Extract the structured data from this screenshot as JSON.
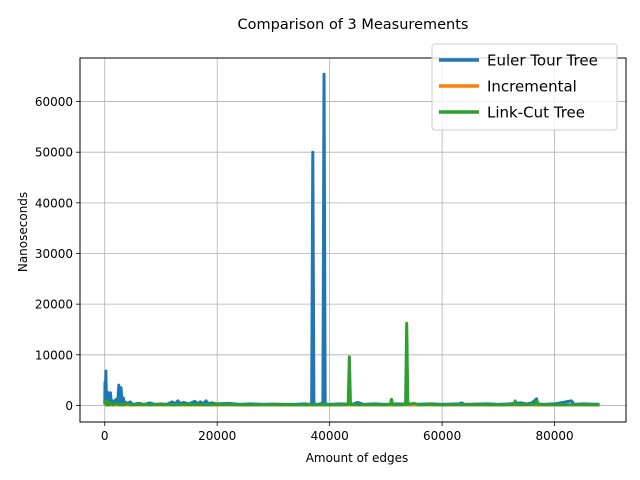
{
  "chart_data": {
    "type": "line",
    "title": "Comparison of 3 Measurements",
    "xlabel": "Amount of edges",
    "ylabel": "Nanoseconds",
    "xlim": [
      -4400,
      92700
    ],
    "ylim": [
      -3270,
      68600
    ],
    "xticks": [
      0,
      20000,
      40000,
      60000,
      80000
    ],
    "yticks": [
      0,
      10000,
      20000,
      30000,
      40000,
      50000,
      60000
    ],
    "grid": true,
    "legend_position": "top-right",
    "series": [
      {
        "name": "Euler Tour Tree",
        "color": "#1f77b4",
        "points": [
          [
            0,
            200
          ],
          [
            50,
            4600
          ],
          [
            100,
            300
          ],
          [
            200,
            6800
          ],
          [
            300,
            400
          ],
          [
            500,
            2600
          ],
          [
            800,
            300
          ],
          [
            1000,
            2500
          ],
          [
            1200,
            200
          ],
          [
            1500,
            900
          ],
          [
            1800,
            200
          ],
          [
            2000,
            1200
          ],
          [
            2300,
            300
          ],
          [
            2500,
            4000
          ],
          [
            2700,
            200
          ],
          [
            2900,
            3500
          ],
          [
            3100,
            300
          ],
          [
            3300,
            1500
          ],
          [
            3500,
            200
          ],
          [
            3800,
            600
          ],
          [
            4000,
            200
          ],
          [
            4500,
            700
          ],
          [
            5000,
            200
          ],
          [
            6000,
            400
          ],
          [
            7000,
            200
          ],
          [
            8000,
            500
          ],
          [
            9000,
            200
          ],
          [
            10000,
            300
          ],
          [
            11000,
            200
          ],
          [
            12000,
            700
          ],
          [
            12500,
            300
          ],
          [
            13000,
            900
          ],
          [
            13500,
            300
          ],
          [
            14000,
            600
          ],
          [
            15000,
            300
          ],
          [
            16000,
            800
          ],
          [
            16500,
            300
          ],
          [
            17000,
            700
          ],
          [
            17500,
            300
          ],
          [
            18000,
            900
          ],
          [
            18500,
            300
          ],
          [
            19000,
            500
          ],
          [
            20000,
            300
          ],
          [
            22000,
            400
          ],
          [
            24000,
            200
          ],
          [
            26000,
            300
          ],
          [
            28000,
            200
          ],
          [
            30000,
            250
          ],
          [
            32000,
            200
          ],
          [
            34000,
            200
          ],
          [
            35500,
            300
          ],
          [
            36500,
            200
          ],
          [
            36800,
            400
          ],
          [
            37000,
            50000
          ],
          [
            37200,
            300
          ],
          [
            38000,
            200
          ],
          [
            38800,
            500
          ],
          [
            39000,
            65400
          ],
          [
            39200,
            300
          ],
          [
            40000,
            200
          ],
          [
            42000,
            300
          ],
          [
            44000,
            200
          ],
          [
            45000,
            600
          ],
          [
            46000,
            200
          ],
          [
            48000,
            300
          ],
          [
            50000,
            200
          ],
          [
            52000,
            300
          ],
          [
            55000,
            200
          ],
          [
            58000,
            300
          ],
          [
            60000,
            200
          ],
          [
            63000,
            300
          ],
          [
            63500,
            500
          ],
          [
            64000,
            200
          ],
          [
            68000,
            300
          ],
          [
            70000,
            200
          ],
          [
            72000,
            300
          ],
          [
            74000,
            500
          ],
          [
            75000,
            300
          ],
          [
            76000,
            500
          ],
          [
            76800,
            1300
          ],
          [
            77000,
            300
          ],
          [
            78000,
            200
          ],
          [
            80000,
            300
          ],
          [
            83000,
            900
          ],
          [
            83500,
            200
          ],
          [
            85000,
            300
          ],
          [
            88000,
            200
          ]
        ]
      },
      {
        "name": "Incremental",
        "color": "#ff7f0e",
        "points": [
          [
            0,
            80
          ],
          [
            10000,
            80
          ],
          [
            20000,
            80
          ],
          [
            30000,
            80
          ],
          [
            40000,
            80
          ],
          [
            50000,
            80
          ],
          [
            60000,
            80
          ],
          [
            70000,
            80
          ],
          [
            80000,
            80
          ],
          [
            88000,
            80
          ]
        ]
      },
      {
        "name": "Link-Cut Tree",
        "color": "#2ca02c",
        "points": [
          [
            0,
            300
          ],
          [
            200,
            900
          ],
          [
            400,
            100
          ],
          [
            600,
            700
          ],
          [
            800,
            100
          ],
          [
            1000,
            500
          ],
          [
            1500,
            100
          ],
          [
            2000,
            400
          ],
          [
            3000,
            100
          ],
          [
            4000,
            300
          ],
          [
            5000,
            100
          ],
          [
            6000,
            200
          ],
          [
            8000,
            100
          ],
          [
            10000,
            200
          ],
          [
            12000,
            100
          ],
          [
            15000,
            200
          ],
          [
            18000,
            100
          ],
          [
            20000,
            200
          ],
          [
            25000,
            100
          ],
          [
            30000,
            150
          ],
          [
            35000,
            100
          ],
          [
            40000,
            150
          ],
          [
            42000,
            100
          ],
          [
            43300,
            200
          ],
          [
            43500,
            9600
          ],
          [
            43700,
            200
          ],
          [
            45000,
            100
          ],
          [
            48000,
            150
          ],
          [
            50000,
            100
          ],
          [
            50800,
            200
          ],
          [
            51000,
            1200
          ],
          [
            51200,
            150
          ],
          [
            52000,
            100
          ],
          [
            53500,
            200
          ],
          [
            53700,
            16200
          ],
          [
            53900,
            200
          ],
          [
            55000,
            400
          ],
          [
            56000,
            100
          ],
          [
            58000,
            200
          ],
          [
            60000,
            100
          ],
          [
            65000,
            150
          ],
          [
            70000,
            100
          ],
          [
            72800,
            200
          ],
          [
            73000,
            900
          ],
          [
            73200,
            150
          ],
          [
            76500,
            200
          ],
          [
            76800,
            900
          ],
          [
            77000,
            150
          ],
          [
            80000,
            100
          ],
          [
            85000,
            150
          ],
          [
            88000,
            100
          ]
        ]
      }
    ]
  }
}
